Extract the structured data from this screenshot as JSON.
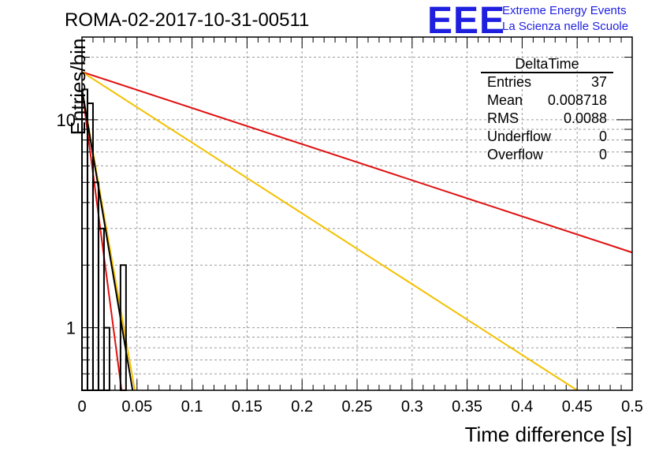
{
  "title": "ROMA-02-2017-10-31-00511",
  "brand": {
    "logo_text": "EEE",
    "line1": "Extreme Energy Events",
    "line2": "La Scienza nelle Scuole",
    "color": "#1f1fe0"
  },
  "stats_box": {
    "title": "DeltaTime",
    "rows": [
      {
        "label": "Entries",
        "value": "37"
      },
      {
        "label": "Mean",
        "value": "0.008718"
      },
      {
        "label": "RMS",
        "value": "0.0088"
      },
      {
        "label": "Underflow",
        "value": "0"
      },
      {
        "label": "Overflow",
        "value": "0"
      }
    ]
  },
  "chart_data": {
    "type": "histogram",
    "xlabel": "Time difference [s]",
    "ylabel": "Entries/bin",
    "xlim": [
      0,
      0.5
    ],
    "ylim": [
      0.5,
      25
    ],
    "yscale": "log",
    "grid": true,
    "x_ticks": [
      "0",
      "0.05",
      "0.1",
      "0.15",
      "0.2",
      "0.25",
      "0.3",
      "0.35",
      "0.4",
      "0.45",
      "0.5"
    ],
    "y_ticks": [
      "1",
      "10"
    ],
    "bin_width": 0.005,
    "histogram": {
      "bin_edges_start": 0.0,
      "counts": [
        14,
        12,
        5,
        3,
        1,
        0,
        0,
        2,
        0,
        0
      ],
      "color": "#000000"
    },
    "fits": [
      {
        "color": "#e01010",
        "type": "exponential",
        "x": [
          0.0,
          0.5
        ],
        "y": [
          17.0,
          2.3
        ]
      },
      {
        "color": "#f5c000",
        "type": "exponential",
        "x": [
          0.0,
          0.45
        ],
        "y": [
          17.0,
          0.5
        ]
      },
      {
        "color": "#e01010",
        "type": "exponential",
        "x": [
          0.0,
          0.036
        ],
        "y": [
          14.0,
          0.5
        ]
      },
      {
        "color": "#f5c000",
        "type": "exponential",
        "x": [
          0.0,
          0.048
        ],
        "y": [
          14.0,
          0.5
        ]
      },
      {
        "color": "#000000",
        "type": "exponential",
        "x": [
          0.0,
          0.046
        ],
        "y": [
          14.0,
          0.5
        ]
      }
    ]
  }
}
